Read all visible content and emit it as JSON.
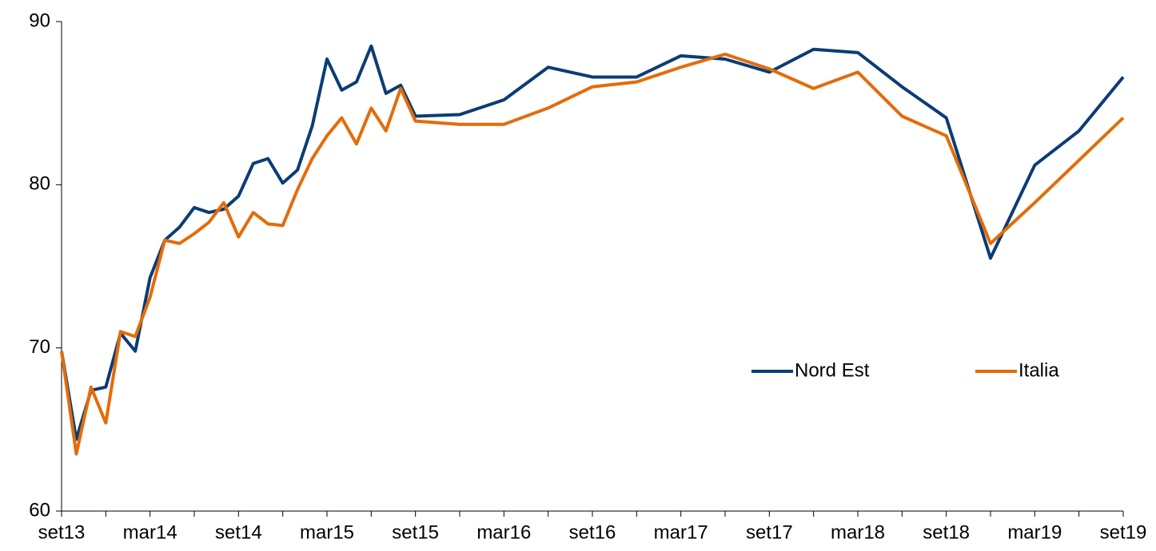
{
  "chart_data": {
    "type": "line",
    "x": [
      "2013-09",
      "2013-10",
      "2013-11",
      "2013-12",
      "2014-01",
      "2014-02",
      "2014-03",
      "2014-04",
      "2014-05",
      "2014-06",
      "2014-07",
      "2014-08",
      "2014-09",
      "2014-10",
      "2014-11",
      "2014-12",
      "2015-01",
      "2015-02",
      "2015-03",
      "2015-04",
      "2015-05",
      "2015-06",
      "2015-07",
      "2015-08",
      "2015-09",
      "2015-12",
      "2016-03",
      "2016-06",
      "2016-09",
      "2016-12",
      "2017-03",
      "2017-06",
      "2017-09",
      "2017-12",
      "2018-03",
      "2018-06",
      "2018-09",
      "2018-12",
      "2019-03",
      "2019-06",
      "2019-09"
    ],
    "series": [
      {
        "name": "Nord Est",
        "color": "#0b3c75",
        "values": [
          69.8,
          64.4,
          67.4,
          67.6,
          70.9,
          69.8,
          74.3,
          76.6,
          77.4,
          78.6,
          78.3,
          78.5,
          79.3,
          81.3,
          81.6,
          80.1,
          80.9,
          83.6,
          87.7,
          85.8,
          86.3,
          88.5,
          85.6,
          86.1,
          84.2,
          84.3,
          85.2,
          87.2,
          86.6,
          86.6,
          87.9,
          87.7,
          86.9,
          88.3,
          88.1,
          86.0,
          84.1,
          75.5,
          81.2,
          83.3,
          86.6
        ]
      },
      {
        "name": "Italia",
        "color": "#e36c0a",
        "values": [
          69.8,
          63.5,
          67.6,
          65.4,
          71.0,
          70.7,
          73.1,
          76.6,
          76.4,
          77.0,
          77.7,
          78.9,
          76.8,
          78.3,
          77.6,
          77.5,
          79.7,
          81.6,
          83.0,
          84.1,
          82.5,
          84.7,
          83.3,
          85.9,
          83.9,
          83.7,
          83.7,
          84.7,
          86.0,
          86.3,
          87.2,
          88.0,
          87.1,
          85.9,
          86.9,
          84.2,
          83.0,
          76.4,
          78.9,
          81.5,
          84.1
        ]
      }
    ],
    "xlim": [
      "2013-09",
      "2019-09"
    ],
    "xticks": [
      {
        "value": "2013-09",
        "label": "set13"
      },
      {
        "value": "2014-03",
        "label": "mar14"
      },
      {
        "value": "2014-09",
        "label": "set14"
      },
      {
        "value": "2015-03",
        "label": "mar15"
      },
      {
        "value": "2015-09",
        "label": "set15"
      },
      {
        "value": "2016-03",
        "label": "mar16"
      },
      {
        "value": "2016-09",
        "label": "set16"
      },
      {
        "value": "2017-03",
        "label": "mar17"
      },
      {
        "value": "2017-09",
        "label": "set17"
      },
      {
        "value": "2018-03",
        "label": "mar18"
      },
      {
        "value": "2018-09",
        "label": "set18"
      },
      {
        "value": "2019-03",
        "label": "mar19"
      },
      {
        "value": "2019-09",
        "label": "set19"
      }
    ],
    "xminorticks": [
      "2013-12",
      "2014-06",
      "2014-12",
      "2015-06",
      "2015-12",
      "2016-06",
      "2016-12",
      "2017-06",
      "2017-12",
      "2018-06",
      "2018-12",
      "2019-06"
    ],
    "ylim": [
      60,
      90
    ],
    "yticks": [
      60,
      70,
      80,
      90
    ],
    "grid": false,
    "legend": "right"
  }
}
